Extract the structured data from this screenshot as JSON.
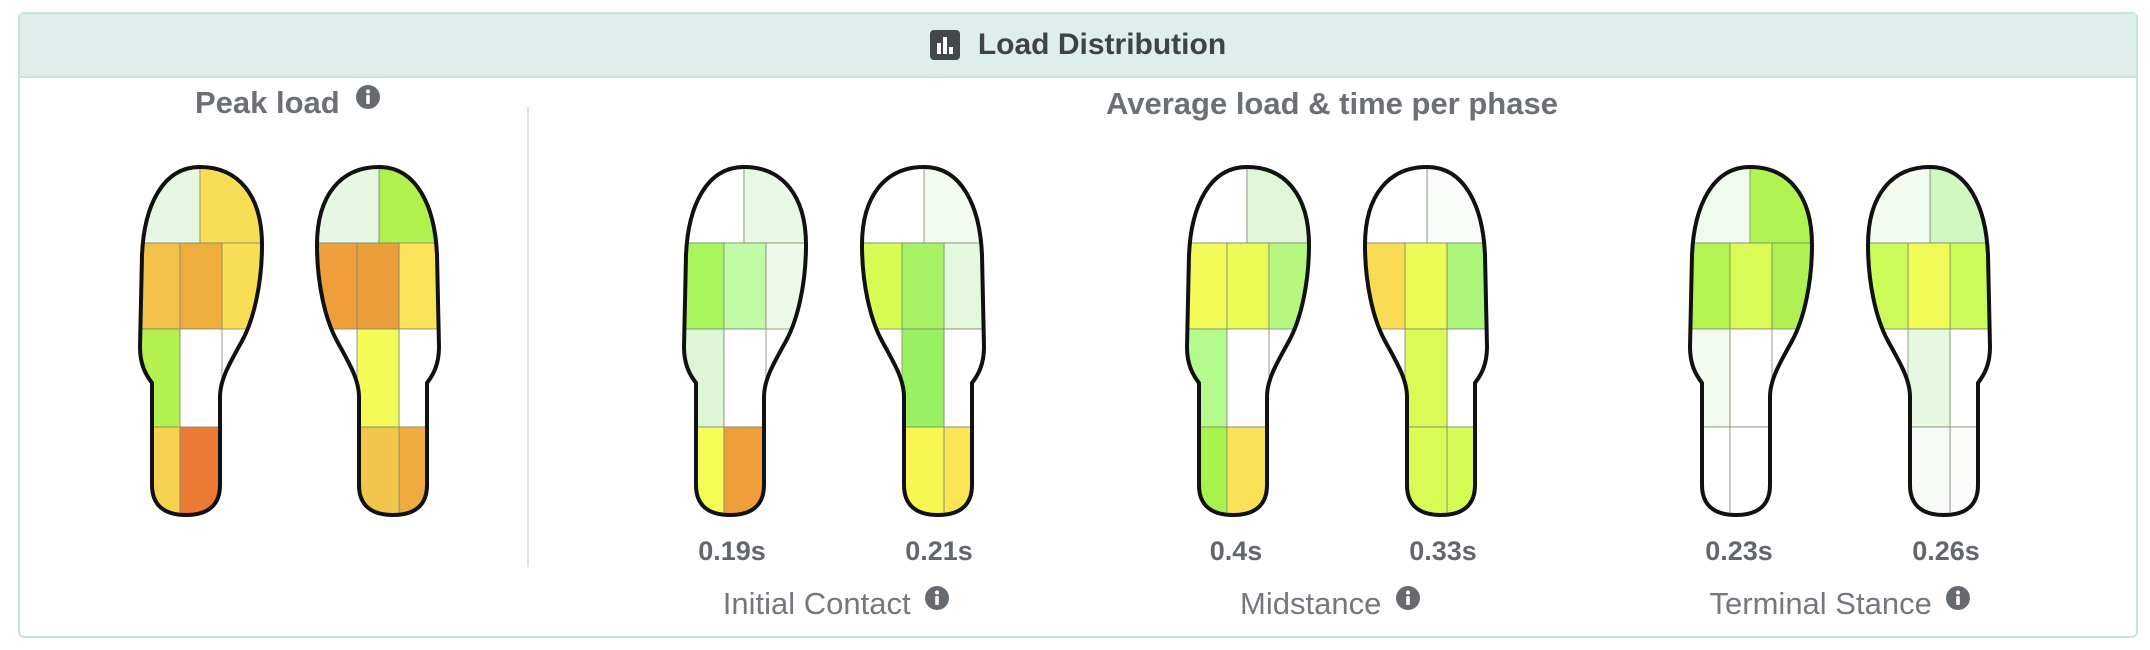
{
  "header": {
    "title": "Load Distribution",
    "icon": "bar-chart-icon"
  },
  "peak_load": {
    "title": "Peak load"
  },
  "average": {
    "title": "Average load & time per phase"
  },
  "phases": [
    {
      "name": "Initial Contact",
      "left_time": "0.19s",
      "right_time": "0.21s"
    },
    {
      "name": "Midstance",
      "left_time": "0.4s",
      "right_time": "0.33s"
    },
    {
      "name": "Terminal Stance",
      "left_time": "0.23s",
      "right_time": "0.26s"
    }
  ],
  "colors": {
    "accent_header_bg": "#deeeea",
    "outline": "#111111"
  },
  "feet": [
    {
      "id": "peak-left",
      "side": "L",
      "cells": [
        "#e6f8e2",
        "#f9de55",
        "#f2c14c",
        "#efad3d",
        "#f9dd52",
        "#b3f24e",
        "#ffffff",
        "#f6d14e",
        "#eb7a33"
      ]
    },
    {
      "id": "peak-right",
      "side": "R",
      "cells": [
        "#b0f24b",
        "#e6f8e2",
        "#fbe458",
        "#ea9f3a",
        "#ee9f3c",
        "#ffffff",
        "#f4fb58",
        "#efab40",
        "#f2c64c"
      ]
    },
    {
      "id": "ic-left",
      "side": "L",
      "cells": [
        "#ffffff",
        "#e8f9e6",
        "#a9f55e",
        "#c1fba6",
        "#eef9ec",
        "#dcf6d7",
        "#ffffff",
        "#f5fc55",
        "#ef9f3a"
      ]
    },
    {
      "id": "ic-right",
      "side": "R",
      "cells": [
        "#f3fbf1",
        "#ffffff",
        "#e3f8dd",
        "#a6f463",
        "#d8fb54",
        "#ffffff",
        "#9af060",
        "#fbe456",
        "#f8f650"
      ]
    },
    {
      "id": "mid-left",
      "side": "L",
      "cells": [
        "#ffffff",
        "#dff7d6",
        "#f3fb58",
        "#eafb56",
        "#b6f87f",
        "#b4fa8c",
        "#ffffff",
        "#a6f34c",
        "#fbe157"
      ]
    },
    {
      "id": "mid-right",
      "side": "R",
      "cells": [
        "#f8fcf6",
        "#ffffff",
        "#aaf57a",
        "#ecfb55",
        "#f9dc52",
        "#ffffff",
        "#dcfa55",
        "#d6fb55",
        "#dafa55"
      ]
    },
    {
      "id": "ts-left",
      "side": "L",
      "cells": [
        "#f0faee",
        "#b1f451",
        "#b4f450",
        "#dafa55",
        "#b0f052",
        "#f3fbf1",
        "#ffffff",
        "#ffffff",
        "#ffffff"
      ]
    },
    {
      "id": "ts-right",
      "side": "R",
      "cells": [
        "#d0f7c0",
        "#f3fbf1",
        "#cafb58",
        "#f0fb58",
        "#cafb58",
        "#ffffff",
        "#e6f8e0",
        "#fbfcfa",
        "#f6faf4"
      ]
    }
  ]
}
